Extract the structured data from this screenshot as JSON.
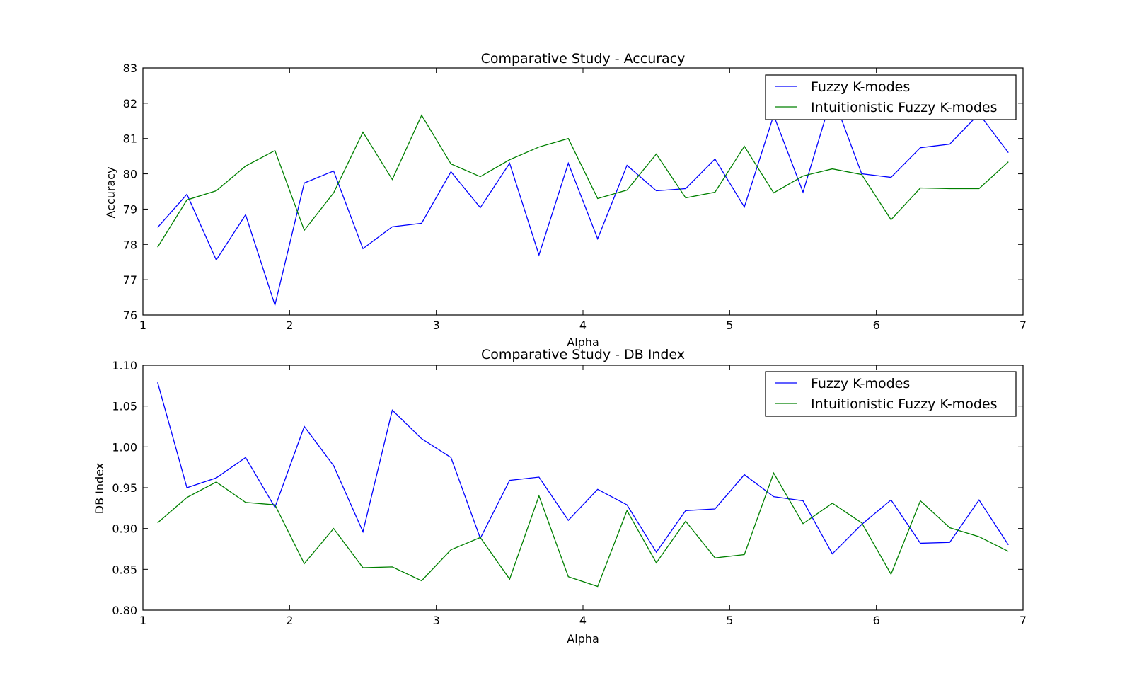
{
  "chart_data": [
    {
      "type": "line",
      "title": "Comparative Study - Accuracy",
      "xlabel": "Alpha",
      "ylabel": "Accuracy",
      "xlim": [
        1,
        7
      ],
      "ylim": [
        76,
        83
      ],
      "xticks": [
        1,
        2,
        3,
        4,
        5,
        6,
        7
      ],
      "yticks": [
        76,
        77,
        78,
        79,
        80,
        81,
        82,
        83
      ],
      "ytick_labels": [
        "76",
        "77",
        "78",
        "79",
        "80",
        "81",
        "82",
        "83"
      ],
      "legend_placement": "top-right",
      "x": [
        1.1,
        1.3,
        1.5,
        1.7,
        1.9,
        2.1,
        2.3,
        2.5,
        2.7,
        2.9,
        3.1,
        3.3,
        3.5,
        3.7,
        3.9,
        4.1,
        4.3,
        4.5,
        4.7,
        4.9,
        5.1,
        5.3,
        5.5,
        5.7,
        5.9,
        6.1,
        6.3,
        6.5,
        6.7,
        6.9
      ],
      "series": [
        {
          "name": "Fuzzy K-modes",
          "color": "#0000ff",
          "values": [
            78.48,
            79.42,
            77.56,
            78.84,
            76.28,
            79.74,
            80.08,
            77.88,
            78.5,
            78.6,
            80.06,
            79.04,
            80.3,
            77.7,
            80.3,
            78.16,
            80.24,
            79.52,
            79.58,
            80.42,
            79.06,
            81.66,
            79.48,
            82.24,
            80.0,
            79.9,
            80.74,
            80.84,
            81.7,
            80.6
          ]
        },
        {
          "name": "Intuitionistic Fuzzy K-modes",
          "color": "#008000",
          "values": [
            77.92,
            79.26,
            79.52,
            80.22,
            80.66,
            78.4,
            79.46,
            81.18,
            79.84,
            81.66,
            80.28,
            79.92,
            80.4,
            80.76,
            81.0,
            79.3,
            79.54,
            80.56,
            79.32,
            79.48,
            80.78,
            79.46,
            79.94,
            80.14,
            79.98,
            78.7,
            79.6,
            79.58,
            79.58,
            80.34
          ]
        }
      ]
    },
    {
      "type": "line",
      "title": "Comparative Study - DB Index",
      "xlabel": "Alpha",
      "ylabel": "DB Index",
      "xlim": [
        1,
        7
      ],
      "ylim": [
        0.8,
        1.1
      ],
      "xticks": [
        1,
        2,
        3,
        4,
        5,
        6,
        7
      ],
      "yticks": [
        0.8,
        0.85,
        0.9,
        0.95,
        1.0,
        1.05,
        1.1
      ],
      "ytick_labels": [
        "0.80",
        "0.85",
        "0.90",
        "0.95",
        "1.00",
        "1.05",
        "1.10"
      ],
      "legend_placement": "top-right",
      "x": [
        1.1,
        1.3,
        1.5,
        1.7,
        1.9,
        2.1,
        2.3,
        2.5,
        2.7,
        2.9,
        3.1,
        3.3,
        3.5,
        3.7,
        3.9,
        4.1,
        4.3,
        4.5,
        4.7,
        4.9,
        5.1,
        5.3,
        5.5,
        5.7,
        5.9,
        6.1,
        6.3,
        6.5,
        6.7,
        6.9
      ],
      "series": [
        {
          "name": "Fuzzy K-modes",
          "color": "#0000ff",
          "values": [
            1.079,
            0.95,
            0.962,
            0.987,
            0.926,
            1.025,
            0.977,
            0.896,
            1.045,
            1.01,
            0.987,
            0.888,
            0.959,
            0.963,
            0.91,
            0.948,
            0.929,
            0.871,
            0.922,
            0.924,
            0.966,
            0.939,
            0.934,
            0.869,
            0.905,
            0.935,
            0.882,
            0.883,
            0.935,
            0.88
          ]
        },
        {
          "name": "Intuitionistic Fuzzy K-modes",
          "color": "#008000",
          "values": [
            0.907,
            0.938,
            0.957,
            0.932,
            0.929,
            0.857,
            0.9,
            0.852,
            0.853,
            0.836,
            0.874,
            0.889,
            0.838,
            0.94,
            0.841,
            0.829,
            0.922,
            0.858,
            0.909,
            0.864,
            0.868,
            0.968,
            0.906,
            0.931,
            0.907,
            0.844,
            0.934,
            0.901,
            0.89,
            0.872
          ]
        }
      ]
    }
  ]
}
